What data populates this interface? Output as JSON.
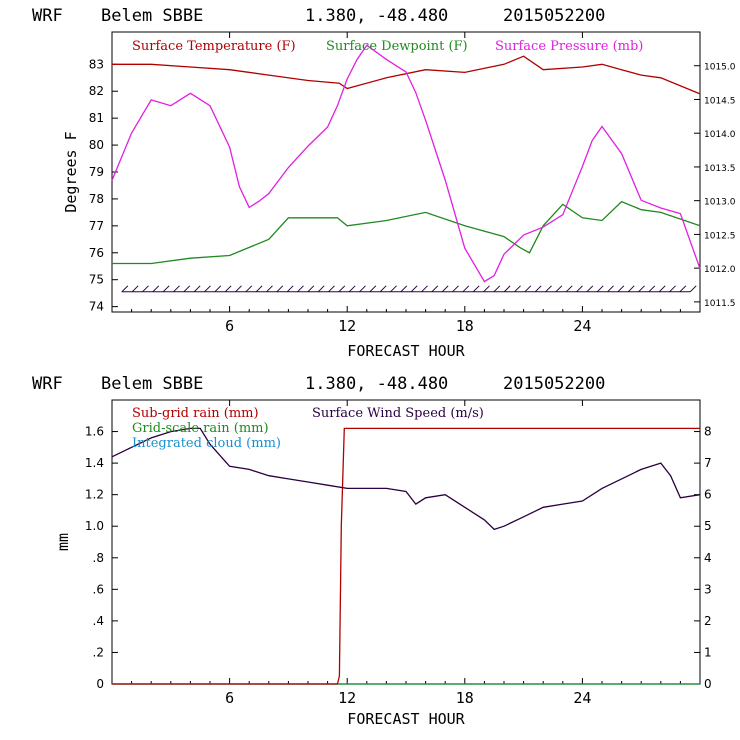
{
  "colors": {
    "temperature": "#b00000",
    "dewpoint": "#1f8a1f",
    "pressure": "#e020e0",
    "wind_barbs": "#2a0040",
    "subgrid_rain": "#b00000",
    "gridscale_rain": "#1f8a1f",
    "cloud": "#1a8fd0",
    "wind_speed": "#2a0040"
  },
  "chart_data": [
    {
      "type": "line",
      "title": {
        "model": "WRF",
        "station": "Belem SBBE",
        "coords": "1.380, -48.480",
        "init": "2015052200"
      },
      "xlabel": "FORECAST HOUR",
      "ylabel": "Degrees F",
      "xlim": [
        0,
        30
      ],
      "ylim": [
        73.8,
        84.2
      ],
      "y2lim": [
        1011.35,
        1015.5
      ],
      "x_ticks": [
        "6",
        "12",
        "18",
        "24"
      ],
      "y_ticks": [
        "74",
        "75",
        "76",
        "77",
        "78",
        "79",
        "80",
        "81",
        "82",
        "83"
      ],
      "y2_ticks": [
        "1011.5",
        "1012.0",
        "1012.5",
        "1013.0",
        "1013.5",
        "1014.0",
        "1014.5",
        "1015.0"
      ],
      "legend_position": "top",
      "series": [
        {
          "name": "Surface Temperature (F)",
          "axis": "left",
          "x": [
            0,
            2,
            4,
            6,
            8,
            10,
            11.6,
            12,
            14,
            16,
            18,
            20,
            21,
            22,
            24,
            25,
            26,
            27,
            28,
            30
          ],
          "values": [
            83.0,
            83.0,
            82.9,
            82.8,
            82.6,
            82.4,
            82.3,
            82.1,
            82.5,
            82.8,
            82.7,
            83.0,
            83.3,
            82.8,
            82.9,
            83.0,
            82.8,
            82.6,
            82.5,
            81.9
          ]
        },
        {
          "name": "Surface Dewpoint (F)",
          "axis": "left",
          "x": [
            0,
            2,
            4,
            6,
            8,
            9,
            10,
            11.5,
            12,
            14,
            16,
            18,
            20,
            20.8,
            21.3,
            22,
            23,
            24,
            25,
            26,
            27,
            28,
            30
          ],
          "values": [
            75.6,
            75.6,
            75.8,
            75.9,
            76.5,
            77.3,
            77.3,
            77.3,
            77.0,
            77.2,
            77.5,
            77.0,
            76.6,
            76.2,
            76.0,
            77.0,
            77.8,
            77.3,
            77.2,
            77.9,
            77.6,
            77.5,
            77.0
          ]
        },
        {
          "name": "Surface Pressure (mb)",
          "axis": "right",
          "x": [
            0,
            1,
            2,
            3,
            4,
            5,
            6,
            6.5,
            7,
            7.5,
            8,
            9,
            10,
            11,
            11.5,
            12,
            12.5,
            13,
            14,
            15,
            15.5,
            16,
            17,
            18,
            19,
            19.5,
            20,
            21,
            22,
            23,
            24,
            24.5,
            25,
            26,
            27,
            28,
            29,
            30
          ],
          "values": [
            1013.3,
            1014.0,
            1014.5,
            1014.4,
            1014.6,
            1014.4,
            1013.8,
            1013.2,
            1012.9,
            1013.0,
            1013.1,
            1013.5,
            1013.8,
            1014.1,
            1014.4,
            1014.8,
            1015.1,
            1015.3,
            1015.1,
            1014.9,
            1014.6,
            1014.2,
            1013.3,
            1012.3,
            1011.8,
            1011.9,
            1012.2,
            1012.5,
            1012.6,
            1012.8,
            1013.5,
            1013.9,
            1014.1,
            1013.7,
            1013.0,
            1012.9,
            1012.8,
            1012.0
          ]
        }
      ],
      "wind_barbs": {
        "name": "surface wind barbs",
        "x_start": 0.5,
        "x_end": 29.5,
        "count": 56,
        "level": 74.55
      }
    },
    {
      "type": "line",
      "title": {
        "model": "WRF",
        "station": "Belem SBBE",
        "coords": "1.380, -48.480",
        "init": "2015052200"
      },
      "xlabel": "FORECAST HOUR",
      "ylabel": "mm",
      "xlim": [
        0,
        30
      ],
      "ylim": [
        0,
        1.8
      ],
      "y2lim": [
        0,
        9
      ],
      "x_ticks": [
        "6",
        "12",
        "18",
        "24"
      ],
      "y_ticks": [
        "0",
        ".2",
        ".4",
        ".6",
        ".8",
        "1.0",
        "1.2",
        "1.4",
        "1.6"
      ],
      "y2_ticks": [
        "0",
        "1",
        "2",
        "3",
        "4",
        "5",
        "6",
        "7",
        "8"
      ],
      "legend_position": "top-left",
      "series": [
        {
          "name": "Sub-grid rain (mm)",
          "axis": "left",
          "x": [
            0,
            11.5,
            11.6,
            11.7,
            11.85,
            30
          ],
          "values": [
            0,
            0,
            0.05,
            1.0,
            1.62,
            1.62
          ]
        },
        {
          "name": "Grid-scale rain (mm)",
          "axis": "left",
          "x": [
            0,
            30
          ],
          "values": [
            0,
            0
          ]
        },
        {
          "name": "Integrated cloud (mm)",
          "axis": "left",
          "x": [
            0,
            30
          ],
          "values": [
            0,
            0
          ]
        },
        {
          "name": "Surface Wind Speed (m/s)",
          "axis": "right",
          "x": [
            0,
            1,
            2,
            3,
            4,
            4.5,
            5,
            6,
            7,
            8,
            9,
            10,
            11,
            12,
            13,
            14,
            15,
            15.5,
            16,
            17,
            18,
            19,
            19.5,
            20,
            21,
            22,
            23,
            24,
            25,
            26,
            27,
            28,
            28.5,
            29,
            30
          ],
          "values": [
            7.2,
            7.5,
            7.8,
            8.0,
            8.1,
            8.1,
            7.6,
            6.9,
            6.8,
            6.6,
            6.5,
            6.4,
            6.3,
            6.2,
            6.2,
            6.2,
            6.1,
            5.7,
            5.9,
            6.0,
            5.6,
            5.2,
            4.9,
            5.0,
            5.3,
            5.6,
            5.7,
            5.8,
            6.2,
            6.5,
            6.8,
            7.0,
            6.6,
            5.9,
            6.0
          ]
        }
      ]
    }
  ]
}
